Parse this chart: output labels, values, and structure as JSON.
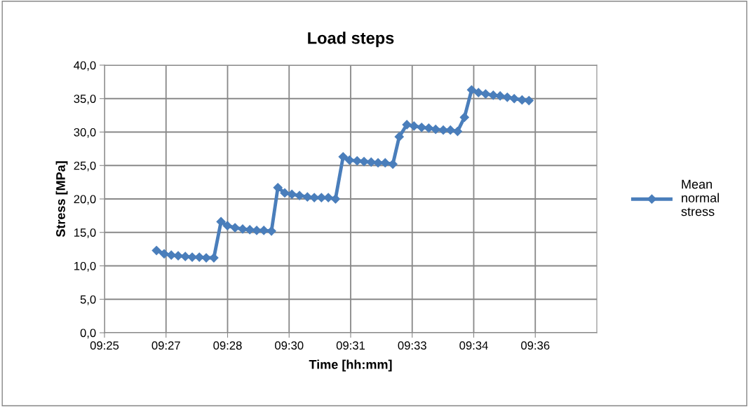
{
  "chart_data": {
    "type": "line",
    "title": "Load steps",
    "xlabel": "Time [hh:mm]",
    "ylabel": "Stress [MPa]",
    "x": [
      9.4378,
      9.4409,
      9.4438,
      9.4466,
      9.4495,
      9.4523,
      9.4552,
      9.458,
      9.4611,
      9.464,
      9.4666,
      9.4697,
      9.4728,
      9.4757,
      9.4785,
      9.4814,
      9.4845,
      9.4871,
      9.4899,
      9.4928,
      9.4959,
      9.4991,
      9.5019,
      9.5048,
      9.5076,
      9.5105,
      9.5136,
      9.5162,
      9.5193,
      9.5221,
      9.525,
      9.5278,
      9.5307,
      9.5338,
      9.5364,
      9.5395,
      9.5424,
      9.5455,
      9.5484,
      9.5512,
      9.5543,
      9.5572,
      9.5601,
      9.5629,
      9.5658,
      9.5686,
      9.5715,
      9.5746,
      9.5774,
      9.5803,
      9.5831,
      9.5863,
      9.5891
    ],
    "series": [
      {
        "name": "Mean normal stress",
        "color": "#4a7ebb",
        "values": [
          12.3,
          11.8,
          11.6,
          11.5,
          11.4,
          11.3,
          11.3,
          11.2,
          11.2,
          16.6,
          16.0,
          15.7,
          15.5,
          15.4,
          15.3,
          15.3,
          15.2,
          21.7,
          20.9,
          20.7,
          20.5,
          20.3,
          20.2,
          20.2,
          20.2,
          20.0,
          26.3,
          25.8,
          25.7,
          25.6,
          25.5,
          25.4,
          25.4,
          25.2,
          29.3,
          31.1,
          30.9,
          30.7,
          30.6,
          30.4,
          30.3,
          30.3,
          30.1,
          32.2,
          36.3,
          35.9,
          35.7,
          35.5,
          35.4,
          35.2,
          35.0,
          34.8,
          34.7
        ]
      }
    ],
    "xlim": [
      9.41667,
      9.61667
    ],
    "xticks": [
      {
        "value": 9.41667,
        "label": "09:25"
      },
      {
        "value": 9.44167,
        "label": "09:27"
      },
      {
        "value": 9.46667,
        "label": "09:28"
      },
      {
        "value": 9.49167,
        "label": "09:30"
      },
      {
        "value": 9.51667,
        "label": "09:31"
      },
      {
        "value": 9.54167,
        "label": "09:33"
      },
      {
        "value": 9.56667,
        "label": "09:34"
      },
      {
        "value": 9.59167,
        "label": "09:36"
      }
    ],
    "ylim": [
      0,
      40
    ],
    "yticks": [
      {
        "value": 0,
        "label": "0,0"
      },
      {
        "value": 5,
        "label": "5,0"
      },
      {
        "value": 10,
        "label": "10,0"
      },
      {
        "value": 15,
        "label": "15,0"
      },
      {
        "value": 20,
        "label": "20,0"
      },
      {
        "value": 25,
        "label": "25,0"
      },
      {
        "value": 30,
        "label": "30,0"
      },
      {
        "value": 35,
        "label": "35,0"
      },
      {
        "value": 40,
        "label": "40,0"
      }
    ],
    "grid": true,
    "legend": "right",
    "marker": "diamond",
    "line_style": "solid"
  }
}
